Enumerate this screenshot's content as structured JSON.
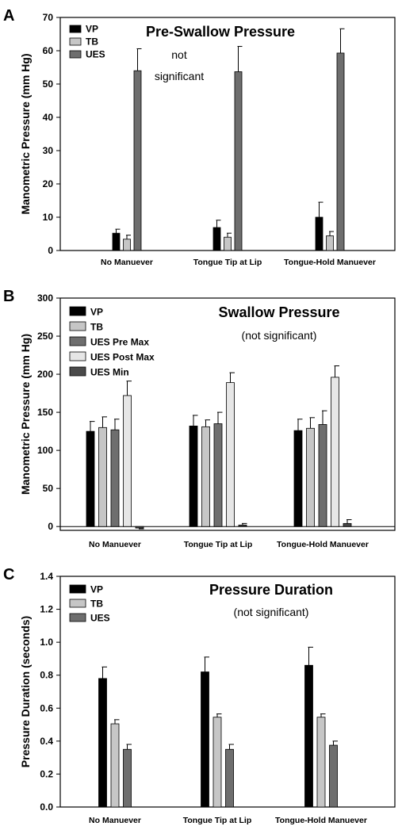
{
  "chart_data": [
    {
      "panel": "A",
      "type": "bar",
      "title": "Pre-Swallow Pressure",
      "subtitle": "",
      "annotation": [
        "not",
        "significant"
      ],
      "ylabel": "Manometric Pressure (mm Hg)",
      "xlabel": "",
      "ylim": [
        0,
        70
      ],
      "yticks": [
        0,
        10,
        20,
        30,
        40,
        50,
        60,
        70
      ],
      "tick_decimals": 0,
      "categories": [
        "No Manuever",
        "Tongue Tip at Lip",
        "Tongue-Hold Manuever"
      ],
      "legend_position": "top-left",
      "grid": false,
      "series": [
        {
          "name": "VP",
          "color": "#000000",
          "values": [
            5.2,
            6.9,
            10.0
          ],
          "errors": [
            1.2,
            2.2,
            4.5
          ]
        },
        {
          "name": "TB",
          "color": "#c6c6c6",
          "values": [
            3.4,
            4.0,
            4.4
          ],
          "errors": [
            1.2,
            1.2,
            1.3
          ]
        },
        {
          "name": "UES",
          "color": "#6e6e6e",
          "values": [
            54.0,
            53.7,
            59.3
          ],
          "errors": [
            6.6,
            7.6,
            7.3
          ]
        }
      ]
    },
    {
      "panel": "B",
      "type": "bar",
      "title": "Swallow Pressure",
      "subtitle": "(not significant)",
      "annotation": [],
      "ylabel": "Manometric Pressure (mm Hg)",
      "xlabel": "",
      "ylim": [
        -5,
        300
      ],
      "yticks": [
        0,
        50,
        100,
        150,
        200,
        250,
        300
      ],
      "tick_decimals": 0,
      "categories": [
        "No Manuever",
        "Tongue Tip at Lip",
        "Tongue-Hold Manuever"
      ],
      "legend_position": "top-left",
      "grid": false,
      "series": [
        {
          "name": "VP",
          "color": "#000000",
          "values": [
            125,
            132,
            126
          ],
          "errors": [
            13,
            14,
            15
          ]
        },
        {
          "name": "TB",
          "color": "#c6c6c6",
          "values": [
            130,
            131,
            129
          ],
          "errors": [
            14,
            9,
            14
          ]
        },
        {
          "name": "UES Pre Max",
          "color": "#6e6e6e",
          "values": [
            127,
            135,
            134
          ],
          "errors": [
            14,
            15,
            18
          ]
        },
        {
          "name": "UES Post Max",
          "color": "#e6e6e6",
          "values": [
            172,
            189,
            196
          ],
          "errors": [
            19,
            13,
            15
          ]
        },
        {
          "name": "UES Min",
          "color": "#4a4a4a",
          "values": [
            -2,
            2,
            4
          ],
          "errors": [
            1,
            2,
            5
          ]
        }
      ]
    },
    {
      "panel": "C",
      "type": "bar",
      "title": "Pressure Duration",
      "subtitle": "(not significant)",
      "annotation": [],
      "ylabel": "Pressure Duration (seconds)",
      "xlabel": "",
      "ylim": [
        0,
        1.4
      ],
      "yticks": [
        0.0,
        0.2,
        0.4,
        0.6,
        0.8,
        1.0,
        1.2,
        1.4
      ],
      "tick_decimals": 1,
      "categories": [
        "No Manuever",
        "Tongue Tip at Lip",
        "Tongue-Hold Manuever"
      ],
      "legend_position": "top-left",
      "grid": false,
      "series": [
        {
          "name": "VP",
          "color": "#000000",
          "values": [
            0.78,
            0.82,
            0.86
          ],
          "errors": [
            0.07,
            0.09,
            0.11
          ]
        },
        {
          "name": "TB",
          "color": "#c6c6c6",
          "values": [
            0.505,
            0.545,
            0.545
          ],
          "errors": [
            0.025,
            0.02,
            0.02
          ]
        },
        {
          "name": "UES",
          "color": "#6e6e6e",
          "values": [
            0.35,
            0.35,
            0.375
          ],
          "errors": [
            0.03,
            0.03,
            0.025
          ]
        }
      ]
    }
  ]
}
